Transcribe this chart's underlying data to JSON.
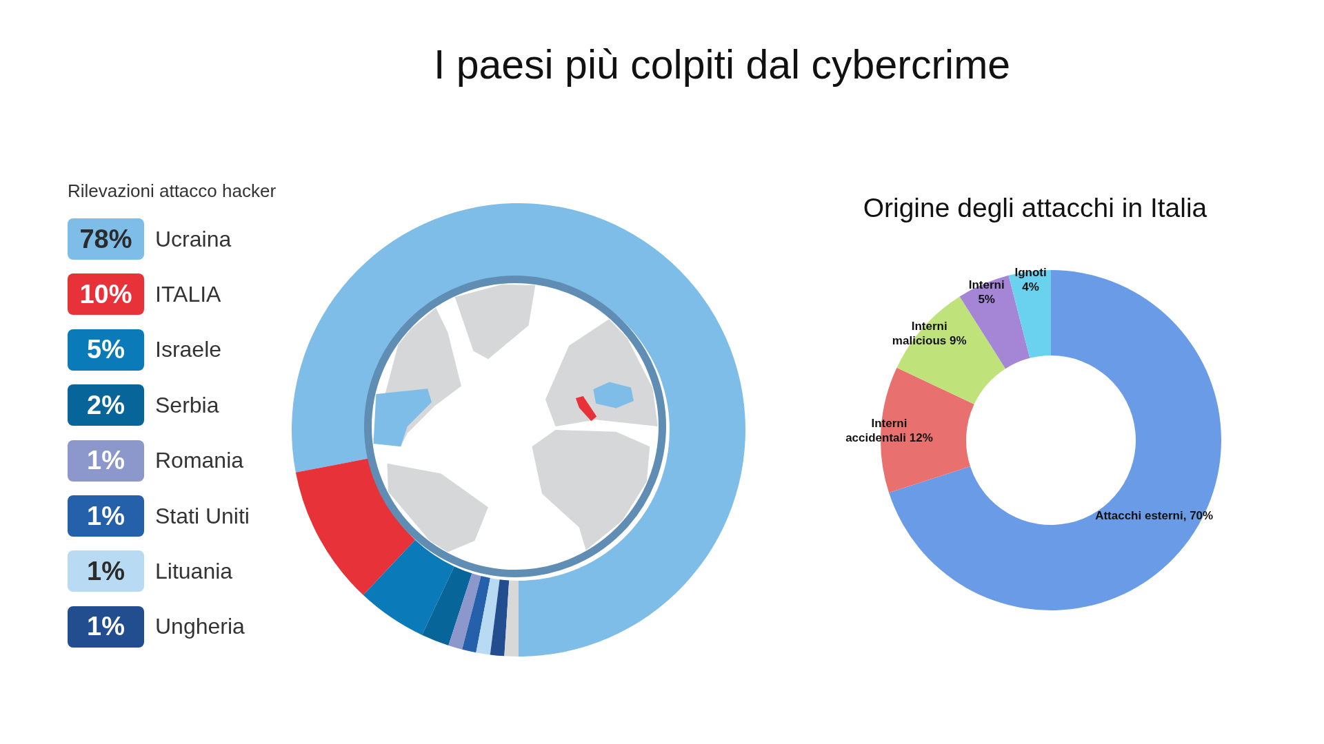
{
  "chart_data": [
    {
      "type": "donut",
      "title": "I paesi più colpiti dal cybercrime",
      "legend_title": "Rilevazioni attacco hacker",
      "legend": "left",
      "categories": [
        "Ucraina",
        "ITALIA",
        "Israele",
        "Serbia",
        "Romania",
        "Stati Uniti",
        "Lituania",
        "Ungheria",
        null
      ],
      "values": [
        78,
        10,
        5,
        2,
        1,
        1,
        1,
        1,
        1
      ],
      "colors": [
        "#7dbde8",
        "#e8323a",
        "#0a7ab8",
        "#08659a",
        "#8c97cc",
        "#2560aa",
        "#b8daf2",
        "#224d8e",
        "#d8d8d8"
      ],
      "value_labels": [
        "78%",
        "10%",
        "5%",
        "2%",
        "1%",
        "1%",
        "1%",
        "1%",
        null
      ]
    },
    {
      "type": "donut",
      "title": "Origine degli attacchi in Italia",
      "categories": [
        "Attacchi esterni",
        "Interni accidentali",
        "Interni malicious",
        "Interni",
        "Ignoti"
      ],
      "values": [
        70,
        12,
        9,
        5,
        4
      ],
      "colors": [
        "#6a9be6",
        "#e8706e",
        "#bfe27a",
        "#a585d6",
        "#6ad2ee"
      ],
      "value_labels": [
        "70%",
        "12%",
        "9%",
        "5%",
        "4%"
      ]
    }
  ]
}
